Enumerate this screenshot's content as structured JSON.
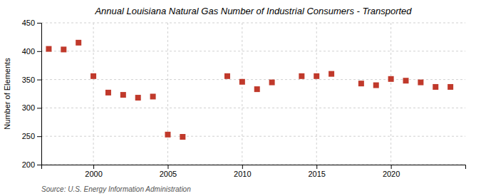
{
  "chart_data": {
    "type": "scatter",
    "title": "Annual Louisiana Natural Gas Number of Industrial Consumers - Transported",
    "ylabel": "Number of Elements",
    "source": "Source: U.S. Energy Information Administration",
    "x": [
      1997,
      1998,
      1999,
      2000,
      2001,
      2002,
      2003,
      2004,
      2005,
      2006,
      2009,
      2010,
      2011,
      2012,
      2014,
      2015,
      2016,
      2018,
      2019,
      2020,
      2021,
      2022,
      2023,
      2024
    ],
    "values": [
      404,
      403,
      415,
      356,
      327,
      323,
      318,
      320,
      253,
      249,
      356,
      346,
      333,
      345,
      356,
      356,
      360,
      343,
      340,
      351,
      348,
      345,
      337,
      337
    ],
    "color": "#c0392b",
    "marker": "square",
    "xlim": [
      1996.5,
      2025
    ],
    "xticks": [
      2000,
      2005,
      2010,
      2015,
      2020
    ],
    "ylim": [
      200,
      450
    ],
    "yticks": [
      200,
      250,
      300,
      350,
      400,
      450
    ],
    "grid": true
  }
}
